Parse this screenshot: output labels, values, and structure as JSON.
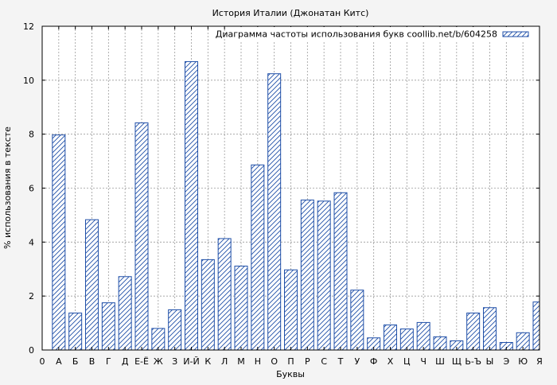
{
  "chart_data": {
    "type": "bar",
    "title": "История Италии (Джонатан Китс)",
    "xlabel": "Буквы",
    "ylabel": "% использования в тексте",
    "legend": {
      "label": "Диаграмма частоты использования букв coollib.net/b/604258",
      "placement": "top-right"
    },
    "x_zero_tick": "0",
    "categories": [
      "А",
      "Б",
      "В",
      "Г",
      "Д",
      "Е-Ё",
      "Ж",
      "З",
      "И-Й",
      "К",
      "Л",
      "М",
      "Н",
      "О",
      "П",
      "Р",
      "С",
      "Т",
      "У",
      "Ф",
      "Х",
      "Ц",
      "Ч",
      "Ш",
      "Щ",
      "Ь-Ъ",
      "Ы",
      "Э",
      "Ю",
      "Я"
    ],
    "values": [
      7.97,
      1.37,
      4.83,
      1.75,
      2.72,
      8.42,
      0.8,
      1.49,
      10.69,
      3.35,
      4.13,
      3.11,
      6.86,
      10.24,
      2.97,
      5.56,
      5.52,
      5.83,
      2.22,
      0.45,
      0.93,
      0.78,
      1.02,
      0.49,
      0.34,
      1.37,
      1.57,
      0.28,
      0.64,
      1.78
    ],
    "yticks": [
      0,
      2,
      4,
      6,
      8,
      10,
      12
    ],
    "ylim": [
      0,
      12
    ],
    "grid": true,
    "colors": {
      "bar_stroke": "#1f4fa8",
      "hatch": "#1f4fa8",
      "bar_fill": "#ffffff",
      "grid": "#9a9a9a"
    }
  }
}
